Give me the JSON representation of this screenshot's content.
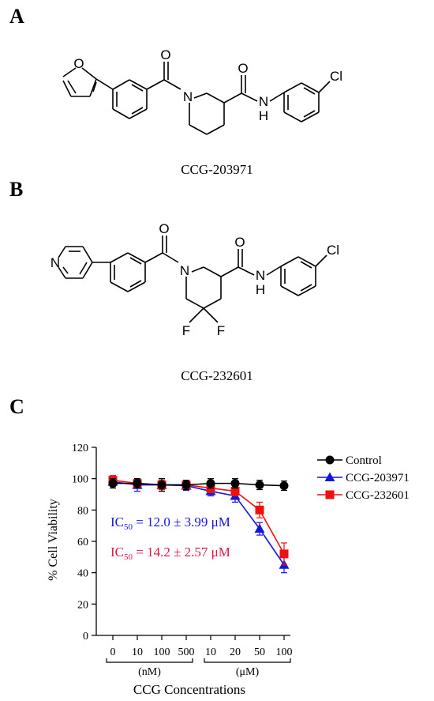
{
  "panels": {
    "a": {
      "label": "A",
      "compound": "CCG-203971"
    },
    "b": {
      "label": "B",
      "compound": "CCG-232601"
    },
    "c": {
      "label": "C"
    }
  },
  "atoms": {
    "O": "O",
    "N": "N",
    "H": "H",
    "Cl": "Cl",
    "F": "F"
  },
  "chart_data": {
    "type": "line",
    "title": "",
    "xlabel": "CCG Concentrations",
    "ylabel": "% Cell Viability",
    "ylim": [
      0,
      120
    ],
    "yticks": [
      "0",
      "20",
      "40",
      "60",
      "80",
      "100",
      "120"
    ],
    "categories": [
      "0",
      "10",
      "100",
      "500",
      "10",
      "20",
      "50",
      "100"
    ],
    "unit_groups": [
      {
        "label": "(nM)",
        "from": 0,
        "to": 3
      },
      {
        "label": "(μM)",
        "from": 4,
        "to": 7
      }
    ],
    "legend_position": "top-right",
    "series": [
      {
        "name": "Control",
        "color": "#000000",
        "marker": "circle",
        "values": [
          97,
          97,
          96,
          96,
          97,
          97,
          96,
          95.5
        ],
        "errors": [
          3,
          3,
          4,
          3,
          3,
          3,
          3,
          3
        ]
      },
      {
        "name": "CCG-203971",
        "color": "#1515e0",
        "marker": "triangle",
        "values": [
          98,
          96,
          96,
          95.5,
          92,
          89,
          68,
          45
        ],
        "errors": [
          3,
          4,
          4,
          3,
          3,
          4,
          4,
          5
        ]
      },
      {
        "name": "CCG-232601",
        "color": "#ee1111",
        "marker": "square",
        "values": [
          99,
          97,
          96,
          96,
          94,
          92,
          80,
          52
        ],
        "errors": [
          3,
          3,
          3,
          3,
          3,
          3,
          5,
          7
        ]
      }
    ],
    "annotations": [
      {
        "sub": "50",
        "rest": " = 12.0 ± 3.99 μM",
        "color": "#1515e0"
      },
      {
        "sub": "50",
        "rest": " = 14.2 ± 2.57 μM",
        "color": "#e0184a"
      }
    ]
  }
}
